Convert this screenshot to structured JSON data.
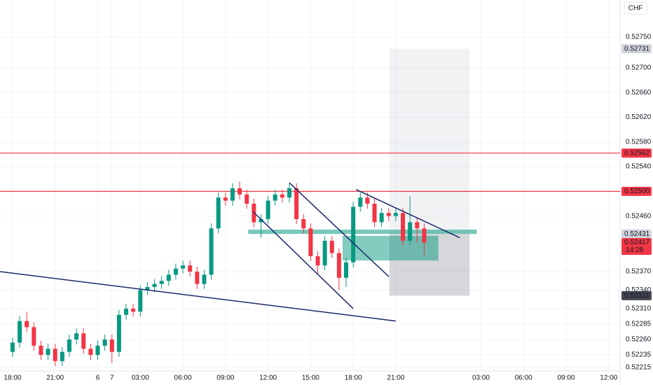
{
  "chart_data": {
    "type": "candlestick",
    "currency": "CHF",
    "up_color": "#089981",
    "down_color": "#f23645",
    "x": [
      0,
      0.5,
      1,
      1.5,
      2,
      2.5,
      3,
      3.5,
      4,
      4.5,
      5,
      5.5,
      6,
      6.5,
      7,
      7.5,
      8,
      8.5,
      9,
      9.5,
      10,
      10.5,
      11,
      11.5,
      12,
      12.5,
      13,
      13.5,
      14,
      14.5,
      15,
      15.5,
      16,
      16.5,
      17,
      17.5,
      18,
      18.5,
      19,
      19.5,
      20,
      20.5,
      21,
      21.5,
      22,
      22.5,
      23,
      23.5,
      24,
      24.5,
      25,
      25.5,
      26,
      26.5,
      27,
      27.5,
      28,
      28.5,
      29
    ],
    "open": [
      0.5224,
      0.52255,
      0.5229,
      0.5228,
      0.5225,
      0.52235,
      0.52245,
      0.52225,
      0.5224,
      0.5226,
      0.5227,
      0.52245,
      0.52235,
      0.5225,
      0.5226,
      0.5224,
      0.523,
      0.5231,
      0.52305,
      0.5234,
      0.52345,
      0.5235,
      0.52355,
      0.52365,
      0.52375,
      0.5238,
      0.5237,
      0.5235,
      0.52365,
      0.5244,
      0.5249,
      0.52485,
      0.52505,
      0.52495,
      0.5248,
      0.5245,
      0.52455,
      0.52485,
      0.52495,
      0.5249,
      0.52505,
      0.52455,
      0.5244,
      0.52395,
      0.5238,
      0.5242,
      0.524,
      0.5236,
      0.52385,
      0.52475,
      0.5249,
      0.5248,
      0.5245,
      0.52465,
      0.5246,
      0.52465,
      0.5242,
      0.5245,
      0.5244
    ],
    "high": [
      0.52263,
      0.52298,
      0.52305,
      0.52288,
      0.52258,
      0.52253,
      0.52253,
      0.52248,
      0.52268,
      0.52278,
      0.52278,
      0.52253,
      0.52258,
      0.52268,
      0.52268,
      0.52308,
      0.52318,
      0.52318,
      0.52348,
      0.52353,
      0.52358,
      0.52363,
      0.52373,
      0.52383,
      0.52388,
      0.52388,
      0.52378,
      0.52373,
      0.52448,
      0.52498,
      0.52498,
      0.52513,
      0.52516,
      0.52503,
      0.52488,
      0.52463,
      0.52493,
      0.52503,
      0.52503,
      0.52513,
      0.52513,
      0.52463,
      0.52448,
      0.52403,
      0.52428,
      0.52428,
      0.52408,
      0.52393,
      0.52483,
      0.52498,
      0.52498,
      0.52488,
      0.52473,
      0.52473,
      0.52473,
      0.52473,
      0.52492,
      0.52458,
      0.52448
    ],
    "low": [
      0.52232,
      0.52247,
      0.52272,
      0.52242,
      0.52227,
      0.52227,
      0.52217,
      0.52217,
      0.52232,
      0.52252,
      0.52237,
      0.52227,
      0.52227,
      0.52242,
      0.52222,
      0.52232,
      0.52292,
      0.52297,
      0.52297,
      0.52332,
      0.52337,
      0.52342,
      0.52347,
      0.52357,
      0.52367,
      0.52362,
      0.52342,
      0.52342,
      0.52357,
      0.52432,
      0.52477,
      0.52477,
      0.52487,
      0.52472,
      0.52442,
      0.52425,
      0.52447,
      0.52477,
      0.52482,
      0.52482,
      0.52447,
      0.52432,
      0.52387,
      0.52365,
      0.52372,
      0.52392,
      0.5234,
      0.52345,
      0.52377,
      0.52467,
      0.52472,
      0.52442,
      0.52442,
      0.52452,
      0.52452,
      0.52412,
      0.52412,
      0.52417,
      0.52397
    ],
    "close": [
      0.52255,
      0.5229,
      0.5228,
      0.5225,
      0.52235,
      0.52245,
      0.52225,
      0.5224,
      0.5226,
      0.5227,
      0.52245,
      0.52235,
      0.5225,
      0.5226,
      0.5224,
      0.523,
      0.5231,
      0.52305,
      0.5234,
      0.52345,
      0.5235,
      0.52355,
      0.52365,
      0.52375,
      0.5238,
      0.5237,
      0.5235,
      0.52365,
      0.5244,
      0.5249,
      0.52485,
      0.52505,
      0.52495,
      0.5248,
      0.5245,
      0.52455,
      0.52485,
      0.52495,
      0.5249,
      0.52505,
      0.52455,
      0.5244,
      0.52395,
      0.5238,
      0.5242,
      0.524,
      0.5236,
      0.52385,
      0.52475,
      0.5249,
      0.5248,
      0.5245,
      0.52465,
      0.5246,
      0.52465,
      0.5242,
      0.5245,
      0.5244,
      0.52417
    ],
    "xlim": [
      -0.886,
      42.8
    ],
    "xticks": [
      {
        "value": 0,
        "label": "18:00"
      },
      {
        "value": 3,
        "label": "21:00"
      },
      6,
      {
        "value": 9,
        "label": "03:00"
      },
      {
        "value": 12,
        "label": "06:00"
      },
      {
        "value": 15,
        "label": "09:00"
      },
      {
        "value": 18,
        "label": "12:00"
      },
      {
        "value": 21,
        "label": "15:00"
      },
      {
        "value": 24,
        "label": "18:00"
      },
      {
        "value": 27,
        "label": "21:00"
      },
      7,
      {
        "value": 33,
        "label": "03:00"
      },
      {
        "value": 36,
        "label": "06:00"
      },
      {
        "value": 39,
        "label": "09:00"
      },
      {
        "value": 42,
        "label": "12:00"
      }
    ],
    "ylim": [
      0.52209,
      0.5281
    ],
    "yticks": [
      {
        "value": 0.5275,
        "label": "0.52750"
      },
      {
        "value": 0.527,
        "label": "0.52700"
      },
      {
        "value": 0.5266,
        "label": "0.52660"
      },
      {
        "value": 0.5262,
        "label": "0.52620"
      },
      {
        "value": 0.5258,
        "label": "0.52580"
      },
      {
        "value": 0.5254,
        "label": "0.52540"
      },
      {
        "value": 0.5246,
        "label": "0.52460"
      },
      {
        "value": 0.5237,
        "label": "0.52370"
      },
      {
        "value": 0.5234,
        "label": "0.52340"
      },
      {
        "value": 0.5231,
        "label": "0.52310"
      },
      {
        "value": 0.52285,
        "label": "0.52285"
      },
      {
        "value": 0.5226,
        "label": "0.52260"
      },
      {
        "value": 0.52235,
        "label": "0.52235"
      },
      {
        "value": 0.52215,
        "label": "0.52215"
      }
    ],
    "horizontal_lines": [
      {
        "value": 0.52562,
        "color": "#f23645"
      },
      {
        "value": 0.525,
        "color": "#f23645"
      }
    ],
    "price_labels": [
      {
        "value": 0.52731,
        "label": "0.52731",
        "color": "#d1d4dc",
        "text_color": "#131722"
      },
      {
        "value": 0.52562,
        "label": "0.52562",
        "color": "#f23645",
        "text_color": "#ffffff"
      },
      {
        "value": 0.525,
        "label": "0.52500",
        "color": "#f23645",
        "text_color": "#ffffff"
      },
      {
        "value": 0.52431,
        "label": "0.52431",
        "color": "#d1d4dc",
        "text_color": "#131722"
      },
      {
        "value": 0.52417,
        "label": "0.52417",
        "color": "#f23645",
        "text_color": "#ffffff",
        "countdown": "14:28"
      },
      {
        "value": 0.52331,
        "label": "0.52331",
        "color": "#434651",
        "text_color": "#ffffff"
      }
    ],
    "trendlines": [
      {
        "x": [
          -0.886,
          27
        ],
        "y": [
          0.5237,
          0.5229
        ]
      },
      {
        "x": [
          16.95,
          24
        ],
        "y": [
          0.52467,
          0.5231
        ]
      },
      {
        "x": [
          19.5,
          26.5
        ],
        "y": [
          0.52514,
          0.52362
        ]
      },
      {
        "x": [
          24.2,
          31.5
        ],
        "y": [
          0.52503,
          0.52425
        ]
      }
    ],
    "trendline_color": "#1a2a6c",
    "boxes": [
      {
        "x": [
          26.55,
          32.2
        ],
        "y": [
          0.52431,
          0.52731
        ],
        "color": "rgba(180,185,195,0.18)"
      },
      {
        "x": [
          26.55,
          32.2
        ],
        "y": [
          0.52331,
          0.52431
        ],
        "color": "rgba(120,123,134,0.3)"
      },
      {
        "x": [
          23.25,
          30
        ],
        "y": [
          0.52388,
          0.52428
        ],
        "color": "rgba(8,153,129,0.5)"
      },
      {
        "x": [
          16.6,
          32.7
        ],
        "y": [
          0.52431,
          0.52438
        ],
        "color": "rgba(8,153,129,0.55)"
      }
    ]
  }
}
